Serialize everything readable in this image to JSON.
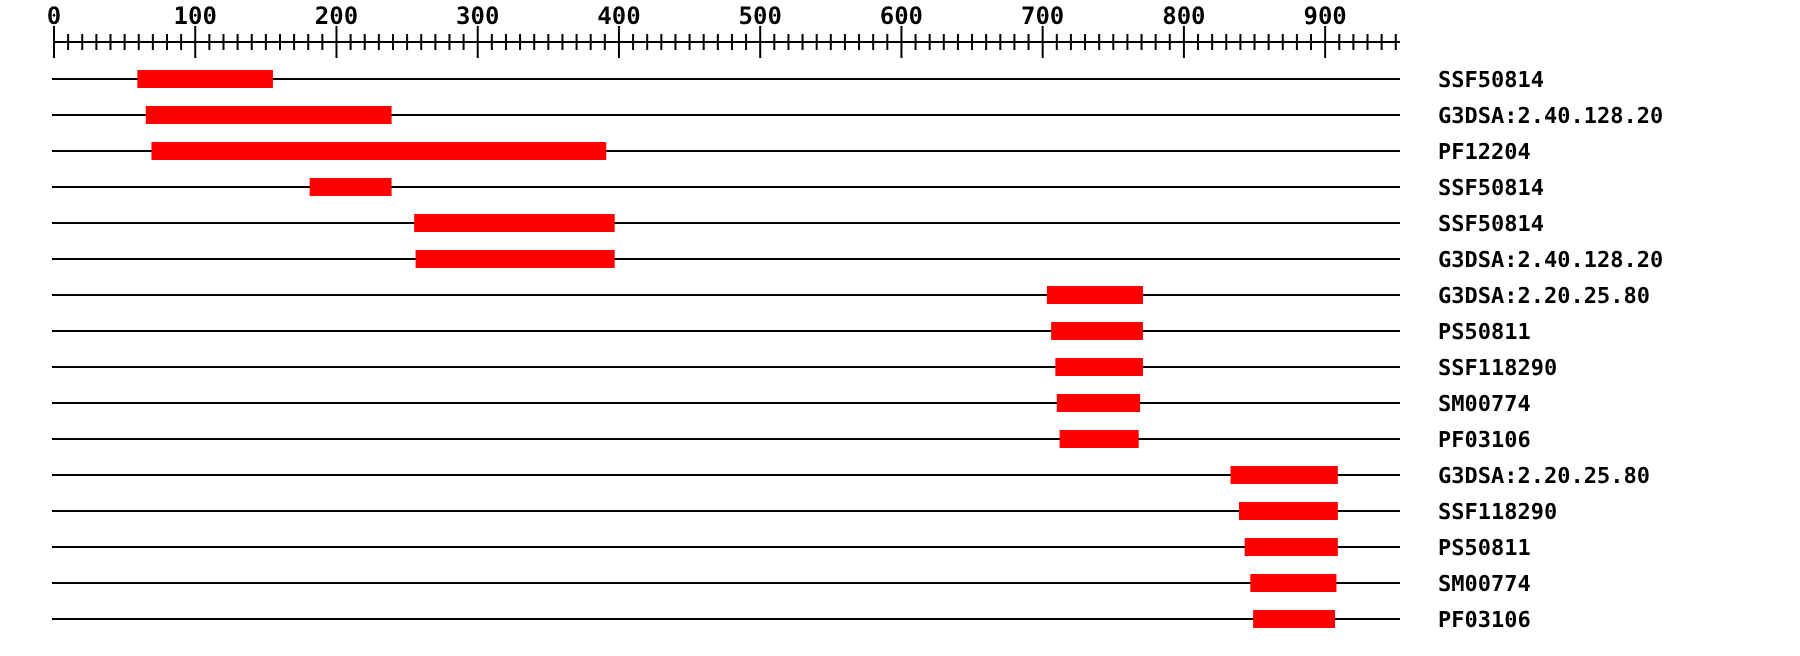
{
  "chart_data": {
    "type": "bar",
    "orientation": "horizontal",
    "categories": [
      "SSF50814",
      "G3DSA:2.40.128.20",
      "PF12204",
      "SSF50814",
      "SSF50814",
      "G3DSA:2.40.128.20",
      "G3DSA:2.20.25.80",
      "PS50811",
      "SSF118290",
      "SM00774",
      "PF03106",
      "G3DSA:2.20.25.80",
      "SSF118290",
      "PS50811",
      "SM00774",
      "PF03106"
    ],
    "base": [
      59,
      65,
      69,
      181,
      255,
      256,
      703,
      706,
      709,
      710,
      712,
      833,
      839,
      843,
      847,
      849
    ],
    "values": [
      96,
      174,
      322,
      58,
      142,
      141,
      68,
      65,
      62,
      59,
      56,
      76,
      70,
      66,
      61,
      58
    ],
    "color": "#ff0000",
    "xlim": [
      0,
      953
    ],
    "xticks": [
      0,
      {
        "value": 10,
        "label": null
      },
      {
        "value": 20,
        "label": null
      },
      {
        "value": 30,
        "label": null
      },
      {
        "value": 40,
        "label": null
      },
      {
        "value": 50,
        "label": null
      },
      {
        "value": 60,
        "label": null
      },
      {
        "value": 70,
        "label": null
      },
      {
        "value": 80,
        "label": null
      },
      {
        "value": 90,
        "label": null
      },
      100,
      {
        "value": 110,
        "label": null
      },
      {
        "value": 120,
        "label": null
      },
      {
        "value": 130,
        "label": null
      },
      {
        "value": 140,
        "label": null
      },
      {
        "value": 150,
        "label": null
      },
      {
        "value": 160,
        "label": null
      },
      {
        "value": 170,
        "label": null
      },
      {
        "value": 180,
        "label": null
      },
      {
        "value": 190,
        "label": null
      },
      200,
      {
        "value": 210,
        "label": null
      },
      {
        "value": 220,
        "label": null
      },
      {
        "value": 230,
        "label": null
      },
      {
        "value": 240,
        "label": null
      },
      {
        "value": 250,
        "label": null
      },
      {
        "value": 260,
        "label": null
      },
      {
        "value": 270,
        "label": null
      },
      {
        "value": 280,
        "label": null
      },
      {
        "value": 290,
        "label": null
      },
      300,
      {
        "value": 310,
        "label": null
      },
      {
        "value": 320,
        "label": null
      },
      {
        "value": 330,
        "label": null
      },
      {
        "value": 340,
        "label": null
      },
      {
        "value": 350,
        "label": null
      },
      {
        "value": 360,
        "label": null
      },
      {
        "value": 370,
        "label": null
      },
      {
        "value": 380,
        "label": null
      },
      {
        "value": 390,
        "label": null
      },
      400,
      {
        "value": 410,
        "label": null
      },
      {
        "value": 420,
        "label": null
      },
      {
        "value": 430,
        "label": null
      },
      {
        "value": 440,
        "label": null
      },
      {
        "value": 450,
        "label": null
      },
      {
        "value": 460,
        "label": null
      },
      {
        "value": 470,
        "label": null
      },
      {
        "value": 480,
        "label": null
      },
      {
        "value": 490,
        "label": null
      },
      500,
      {
        "value": 510,
        "label": null
      },
      {
        "value": 520,
        "label": null
      },
      {
        "value": 530,
        "label": null
      },
      {
        "value": 540,
        "label": null
      },
      {
        "value": 550,
        "label": null
      },
      {
        "value": 560,
        "label": null
      },
      {
        "value": 570,
        "label": null
      },
      {
        "value": 580,
        "label": null
      },
      {
        "value": 590,
        "label": null
      },
      600,
      {
        "value": 610,
        "label": null
      },
      {
        "value": 620,
        "label": null
      },
      {
        "value": 630,
        "label": null
      },
      {
        "value": 640,
        "label": null
      },
      {
        "value": 650,
        "label": null
      },
      {
        "value": 660,
        "label": null
      },
      {
        "value": 670,
        "label": null
      },
      {
        "value": 680,
        "label": null
      },
      {
        "value": 690,
        "label": null
      },
      700,
      {
        "value": 710,
        "label": null
      },
      {
        "value": 720,
        "label": null
      },
      {
        "value": 730,
        "label": null
      },
      {
        "value": 740,
        "label": null
      },
      {
        "value": 750,
        "label": null
      },
      {
        "value": 760,
        "label": null
      },
      {
        "value": 770,
        "label": null
      },
      {
        "value": 780,
        "label": null
      },
      {
        "value": 790,
        "label": null
      },
      800,
      {
        "value": 810,
        "label": null
      },
      {
        "value": 820,
        "label": null
      },
      {
        "value": 830,
        "label": null
      },
      {
        "value": 840,
        "label": null
      },
      {
        "value": 850,
        "label": null
      },
      {
        "value": 860,
        "label": null
      },
      {
        "value": 870,
        "label": null
      },
      {
        "value": 880,
        "label": null
      },
      {
        "value": 890,
        "label": null
      },
      900,
      {
        "value": 910,
        "label": null
      },
      {
        "value": 920,
        "label": null
      },
      {
        "value": 930,
        "label": null
      },
      {
        "value": 940,
        "label": null
      },
      {
        "value": 950,
        "label": null
      }
    ],
    "grid": "y"
  }
}
